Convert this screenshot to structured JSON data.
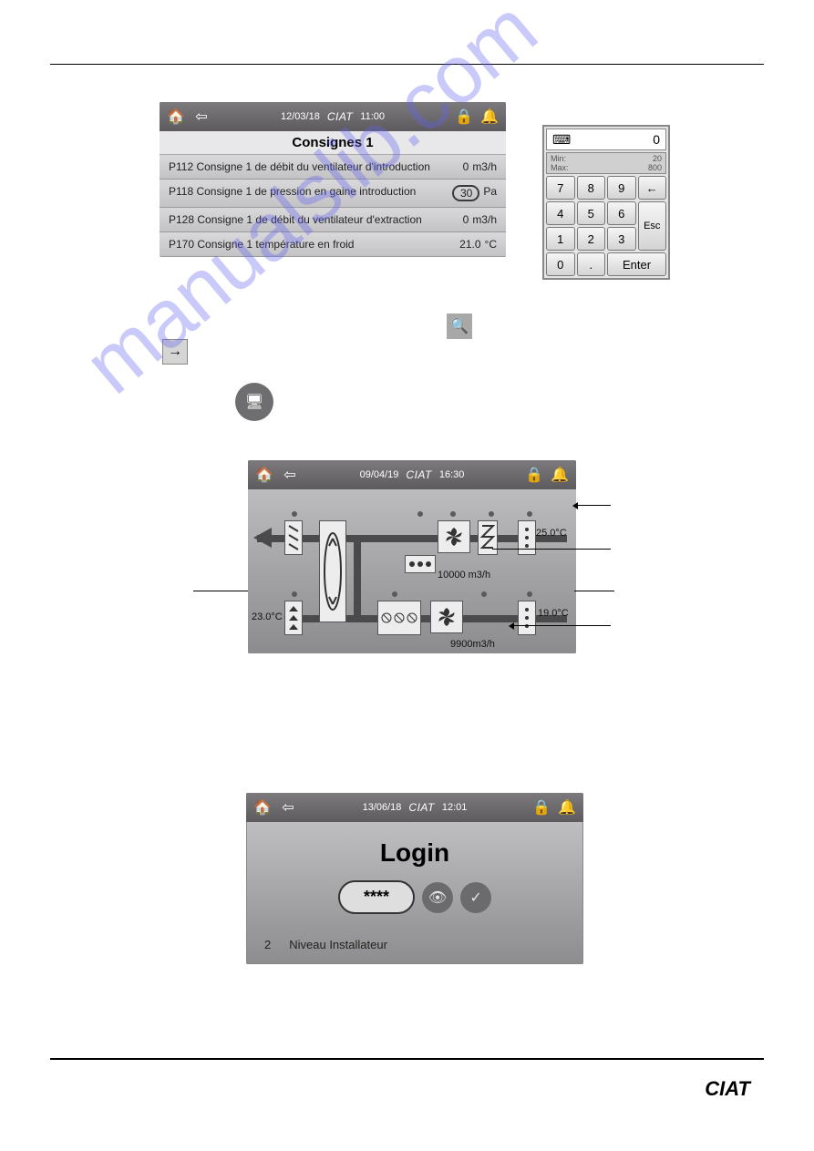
{
  "watermark": "manualslib.com",
  "footer_brand": "CIAT",
  "header_brand": "CIAT",
  "arrow_glyph": "→",
  "search_glyph": "🔍",
  "monitor_glyph": "🖥",
  "home_glyph": "🏠",
  "back_glyph": "⇦",
  "lock_glyph": "🔒",
  "bell_glyph": "🔔",
  "kbd_glyph": "⌨",
  "bksp_glyph": "←",
  "eye_glyph": "👁",
  "check_glyph": "✓",
  "fan_glyph": "✱",
  "consignes": {
    "date": "12/03/18",
    "time": "11:00",
    "title": "Consignes 1",
    "rows": [
      {
        "label": "P112 Consigne 1 de débit du ventilateur d'introduction",
        "value": "0",
        "unit": "m3/h",
        "highlighted": false
      },
      {
        "label": "P118 Consigne 1 de pression en gaine introduction",
        "value": "30",
        "unit": "Pa",
        "highlighted": true
      },
      {
        "label": "P128 Consigne 1 de débit du ventilateur d'extraction",
        "value": "0",
        "unit": "m3/h",
        "highlighted": false
      },
      {
        "label": "P170 Consigne 1 température en froid",
        "value": "21.0",
        "unit": "°C",
        "highlighted": false
      }
    ]
  },
  "keypad": {
    "display": "0",
    "min_label": "Min:",
    "min_value": "20",
    "max_label": "Max:",
    "max_value": "800",
    "keys": {
      "k7": "7",
      "k8": "8",
      "k9": "9",
      "k4": "4",
      "k5": "5",
      "k6": "6",
      "esc": "Esc",
      "k1": "1",
      "k2": "2",
      "k3": "3",
      "k0": "0",
      "kdot": ".",
      "enter": "Enter"
    }
  },
  "process": {
    "date": "09/04/19",
    "time": "16:30",
    "temp_supply_in": "25.0°C",
    "flow_supply": "10000 m3/h",
    "temp_return_out": "23.0°C",
    "temp_return_in": "19.0°C",
    "flow_return": "9900m3/h",
    "colors": {
      "duct": "#4a494b",
      "comp_fill": "#ededed",
      "comp_border": "#555555"
    }
  },
  "login": {
    "date": "13/06/18",
    "time": "12:01",
    "title": "Login",
    "password_mask": "****",
    "level_code": "2",
    "level_label": "Niveau Installateur"
  }
}
